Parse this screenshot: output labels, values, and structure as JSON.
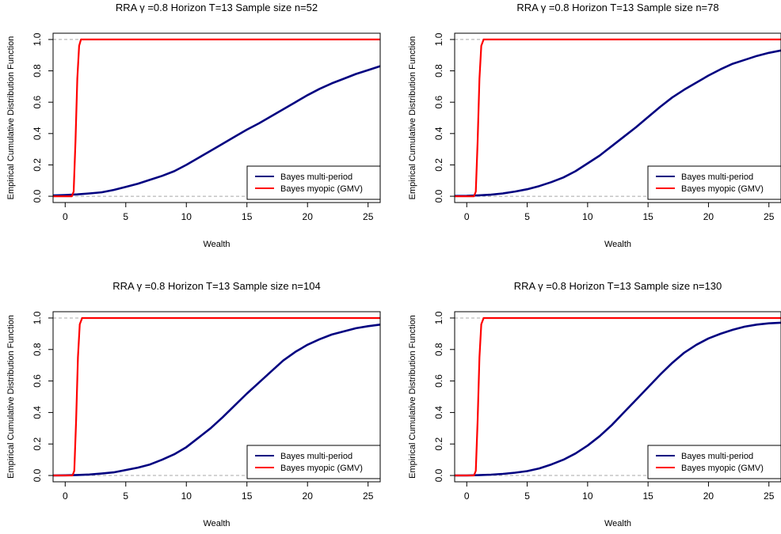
{
  "chart_data": [
    {
      "type": "line",
      "title": "RRA γ =0.8  Horizon T=13  Sample size n=52",
      "xlabel": "Wealth",
      "ylabel": "Empirical Cumulative Distribution Function",
      "xlim": [
        -1,
        26
      ],
      "ylim": [
        0,
        1
      ],
      "xticks": [
        "0",
        "5",
        "10",
        "15",
        "20",
        "25"
      ],
      "yticks": [
        "0.0",
        "0.2",
        "0.4",
        "0.6",
        "0.8",
        "1.0"
      ],
      "grid": false,
      "reference_lines": [
        0,
        1
      ],
      "legend_position": "bottom-right",
      "series": [
        {
          "name": "Bayes multi-period",
          "color": "#000080",
          "x": [
            -1,
            0,
            1,
            2,
            3,
            4,
            5,
            6,
            7,
            8,
            9,
            10,
            11,
            12,
            13,
            14,
            15,
            16,
            17,
            18,
            19,
            20,
            21,
            22,
            23,
            24,
            25,
            26
          ],
          "y": [
            0.005,
            0.008,
            0.012,
            0.018,
            0.025,
            0.04,
            0.06,
            0.08,
            0.105,
            0.13,
            0.16,
            0.2,
            0.245,
            0.29,
            0.335,
            0.38,
            0.425,
            0.465,
            0.51,
            0.555,
            0.6,
            0.645,
            0.685,
            0.72,
            0.75,
            0.78,
            0.805,
            0.83
          ]
        },
        {
          "name": "Bayes myopic (GMV)",
          "color": "#ff0000",
          "x": [
            -1,
            0.55,
            0.7,
            0.85,
            1.0,
            1.15,
            1.3,
            26
          ],
          "y": [
            0,
            0,
            0.03,
            0.35,
            0.75,
            0.96,
            1.0,
            1.0
          ]
        }
      ]
    },
    {
      "type": "line",
      "title": "RRA γ =0.8  Horizon T=13  Sample size n=78",
      "xlabel": "Wealth",
      "ylabel": "Empirical Cumulative Distribution Function",
      "xlim": [
        -1,
        26
      ],
      "ylim": [
        0,
        1
      ],
      "xticks": [
        "0",
        "5",
        "10",
        "15",
        "20",
        "25"
      ],
      "yticks": [
        "0.0",
        "0.2",
        "0.4",
        "0.6",
        "0.8",
        "1.0"
      ],
      "grid": false,
      "reference_lines": [
        0,
        1
      ],
      "legend_position": "bottom-right",
      "series": [
        {
          "name": "Bayes multi-period",
          "color": "#000080",
          "x": [
            -1,
            0,
            1,
            2,
            3,
            4,
            5,
            6,
            7,
            8,
            9,
            10,
            11,
            12,
            13,
            14,
            15,
            16,
            17,
            18,
            19,
            20,
            21,
            22,
            23,
            24,
            25,
            26
          ],
          "y": [
            0.002,
            0.003,
            0.006,
            0.01,
            0.018,
            0.03,
            0.045,
            0.065,
            0.09,
            0.12,
            0.16,
            0.21,
            0.26,
            0.32,
            0.38,
            0.44,
            0.505,
            0.57,
            0.63,
            0.68,
            0.725,
            0.77,
            0.81,
            0.845,
            0.87,
            0.895,
            0.915,
            0.93
          ]
        },
        {
          "name": "Bayes myopic (GMV)",
          "color": "#ff0000",
          "x": [
            -1,
            0.6,
            0.75,
            0.9,
            1.05,
            1.2,
            1.4,
            26
          ],
          "y": [
            0,
            0,
            0.03,
            0.35,
            0.75,
            0.96,
            1.0,
            1.0
          ]
        }
      ]
    },
    {
      "type": "line",
      "title": "RRA γ =0.8  Horizon T=13  Sample size n=104",
      "xlabel": "Wealth",
      "ylabel": "Empirical Cumulative Distribution Function",
      "xlim": [
        -1,
        26
      ],
      "ylim": [
        0,
        1
      ],
      "xticks": [
        "0",
        "5",
        "10",
        "15",
        "20",
        "25"
      ],
      "yticks": [
        "0.0",
        "0.2",
        "0.4",
        "0.6",
        "0.8",
        "1.0"
      ],
      "grid": false,
      "reference_lines": [
        0,
        1
      ],
      "legend_position": "bottom-right",
      "series": [
        {
          "name": "Bayes multi-period",
          "color": "#000080",
          "x": [
            -1,
            0,
            1,
            2,
            3,
            4,
            5,
            6,
            7,
            8,
            9,
            10,
            11,
            12,
            13,
            14,
            15,
            16,
            17,
            18,
            19,
            20,
            21,
            22,
            23,
            24,
            25,
            26
          ],
          "y": [
            0.0,
            0.001,
            0.003,
            0.006,
            0.012,
            0.02,
            0.035,
            0.05,
            0.07,
            0.1,
            0.135,
            0.18,
            0.24,
            0.3,
            0.37,
            0.445,
            0.52,
            0.59,
            0.66,
            0.73,
            0.785,
            0.83,
            0.865,
            0.895,
            0.915,
            0.935,
            0.948,
            0.958
          ]
        },
        {
          "name": "Bayes myopic (GMV)",
          "color": "#ff0000",
          "x": [
            -1,
            0.6,
            0.75,
            0.9,
            1.05,
            1.2,
            1.4,
            26
          ],
          "y": [
            0,
            0,
            0.03,
            0.35,
            0.75,
            0.96,
            1.0,
            1.0
          ]
        }
      ]
    },
    {
      "type": "line",
      "title": "RRA γ =0.8  Horizon T=13  Sample size n=130",
      "xlabel": "Wealth",
      "ylabel": "Empirical Cumulative Distribution Function",
      "xlim": [
        -1,
        26
      ],
      "ylim": [
        0,
        1
      ],
      "xticks": [
        "0",
        "5",
        "10",
        "15",
        "20",
        "25"
      ],
      "yticks": [
        "0.0",
        "0.2",
        "0.4",
        "0.6",
        "0.8",
        "1.0"
      ],
      "grid": false,
      "reference_lines": [
        0,
        1
      ],
      "legend_position": "bottom-right",
      "series": [
        {
          "name": "Bayes multi-period",
          "color": "#000080",
          "x": [
            -1,
            0,
            1,
            2,
            3,
            4,
            5,
            6,
            7,
            8,
            9,
            10,
            11,
            12,
            13,
            14,
            15,
            16,
            17,
            18,
            19,
            20,
            21,
            22,
            23,
            24,
            25,
            26
          ],
          "y": [
            0.0,
            0.0,
            0.002,
            0.005,
            0.01,
            0.018,
            0.028,
            0.045,
            0.07,
            0.1,
            0.14,
            0.19,
            0.25,
            0.32,
            0.4,
            0.48,
            0.56,
            0.64,
            0.715,
            0.78,
            0.83,
            0.87,
            0.9,
            0.925,
            0.945,
            0.958,
            0.966,
            0.97
          ]
        },
        {
          "name": "Bayes myopic (GMV)",
          "color": "#ff0000",
          "x": [
            -1,
            0.6,
            0.75,
            0.9,
            1.05,
            1.2,
            1.4,
            26
          ],
          "y": [
            0,
            0,
            0.03,
            0.35,
            0.75,
            0.96,
            1.0,
            1.0
          ]
        }
      ]
    }
  ]
}
